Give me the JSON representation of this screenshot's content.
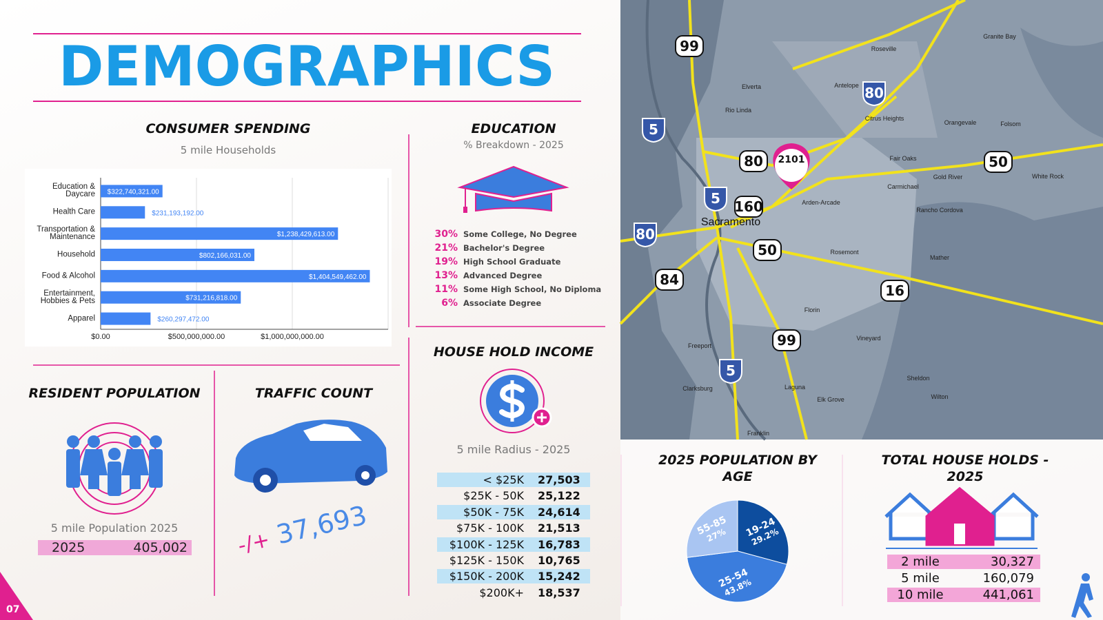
{
  "page_number": "07",
  "title": "DEMOGRAPHICS",
  "consumer_spending": {
    "type": "bar",
    "title": "CONSUMER SPENDING",
    "subtitle": "5 mile Households",
    "categories": [
      "Education & Daycare",
      "Health Care",
      "Transportation & Maintenance",
      "Household",
      "Food & Alcohol",
      "Entertainment, Hobbies & Pets",
      "Apparel"
    ],
    "values": [
      322740321,
      231193192,
      1238429613,
      802166031,
      1404549462,
      731216818,
      260297472
    ],
    "value_labels": [
      "$322,740,321.00",
      "$231,193,192.00",
      "$1,238,429,613.00",
      "$802,166,031.00",
      "$1,404,549,462.00",
      "$731,216,818.00",
      "$260,297,472.00"
    ],
    "color": "#4285f4",
    "xlim": [
      0,
      1500000000
    ],
    "xticks": [
      {
        "value": 0,
        "label": "$0.00"
      },
      {
        "value": 500000000,
        "label": "$500,000,000.00"
      },
      {
        "value": 1000000000,
        "label": "$1,000,000,000.00"
      }
    ],
    "grid": true
  },
  "education": {
    "title": "EDUCATION",
    "subtitle": "% Breakdown - 2025",
    "items": [
      {
        "percent": "30%",
        "label": "Some College, No Degree"
      },
      {
        "percent": "21%",
        "label": "Bachelor's Degree"
      },
      {
        "percent": "19%",
        "label": "High School Graduate"
      },
      {
        "percent": "13%",
        "label": "Advanced Degree"
      },
      {
        "percent": "11%",
        "label": "Some High School, No Diploma"
      },
      {
        "percent": "6%",
        "label": "Associate Degree"
      }
    ]
  },
  "household_income": {
    "title": "HOUSE HOLD INCOME",
    "subtitle": "5 mile Radius - 2025",
    "rows": [
      [
        "< $25K",
        "27,503"
      ],
      [
        "$25K - 50K",
        "25,122"
      ],
      [
        "$50K - 75K",
        "24,614"
      ],
      [
        "$75K - 100K",
        "21,513"
      ],
      [
        "$100K - 125K",
        "16,783"
      ],
      [
        "$125K - 150K",
        "10,765"
      ],
      [
        "$150K - 200K",
        "15,242"
      ],
      [
        "$200K+",
        "18,537"
      ]
    ]
  },
  "resident_population": {
    "title": "RESIDENT POPULATION",
    "subtitle": "5 mile Population 2025",
    "year": "2025",
    "value": "405,002"
  },
  "traffic_count": {
    "title": "TRAFFIC COUNT",
    "sign": "-/+",
    "value": "37,693"
  },
  "population_by_age": {
    "type": "pie",
    "title": "2025 POPULATION BY AGE",
    "categories": [
      "19-24",
      "25-54",
      "55-85"
    ],
    "values": [
      29.2,
      43.8,
      27
    ],
    "value_labels": [
      "29.2%",
      "43.8%",
      "27%"
    ],
    "colors": [
      "#0d4d9e",
      "#3b7ddd",
      "#a9c5f2"
    ]
  },
  "total_households": {
    "title": "TOTAL HOUSE HOLDS - 2025",
    "rows": [
      [
        "2 mile",
        "30,327"
      ],
      [
        "5 mile",
        "160,079"
      ],
      [
        "10 mile",
        "441,061"
      ]
    ]
  },
  "map": {
    "pin": "2101",
    "highways": [
      "99",
      "80",
      "5",
      "80",
      "50",
      "5",
      "160",
      "80",
      "50",
      "84",
      "16",
      "99",
      "5"
    ],
    "places": [
      "Sacramento",
      "Rio Linda",
      "Elverta",
      "Antelope",
      "Citrus Heights",
      "Orangevale",
      "Folsom",
      "Fair Oaks",
      "Carmichael",
      "Arden-Arcade",
      "Rosemont",
      "Florin",
      "Mather",
      "Vineyard",
      "Sheldon",
      "Wilton",
      "Elk Grove",
      "Laguna",
      "Freeport",
      "Clarksburg",
      "Franklin",
      "Granite Bay",
      "Roseville",
      "White Rock",
      "Rancho Cordova",
      "Gold River"
    ]
  }
}
